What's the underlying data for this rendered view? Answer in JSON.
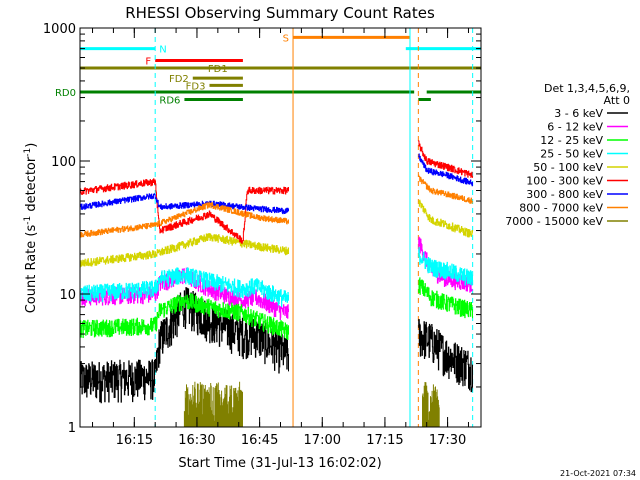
{
  "chart_data": {
    "type": "line",
    "title": "RHESSI Observing Summary Count Rates",
    "xlabel": "Start Time (31-Jul-13 16:02:02)",
    "ylabel": "Count Rate (s^-1 detector^-1)",
    "ylabel_parts": {
      "main": "Count Rate (s",
      "sup1": "-1",
      "mid": " detector",
      "sup2": "-1",
      "end": ")"
    },
    "y_scale": "log",
    "ylim": [
      1,
      1000
    ],
    "xlim": [
      "16:02",
      "17:38"
    ],
    "x_ticks": [
      "16:15",
      "16:30",
      "16:45",
      "17:00",
      "17:15",
      "17:30"
    ],
    "y_ticks": [
      "1",
      "10",
      "100",
      "1000"
    ],
    "footer_date": "21-Oct-2021 07:34",
    "legend": {
      "placement": "right",
      "header_lines": [
        "Det 1,3,4,5,6,9,",
        "Att 0"
      ],
      "entries": [
        {
          "label": "3 - 6 keV",
          "color": "#000000"
        },
        {
          "label": "6 - 12 keV",
          "color": "#ff00ff"
        },
        {
          "label": "12 - 25 keV",
          "color": "#00ff00"
        },
        {
          "label": "25 - 50 keV",
          "color": "#00ffff"
        },
        {
          "label": "50 - 100 keV",
          "color": "#d4d400"
        },
        {
          "label": "100 - 300 keV",
          "color": "#ff0000"
        },
        {
          "label": "300 - 800 keV",
          "color": "#0000ff"
        },
        {
          "label": "800 - 7000 keV",
          "color": "#ff8000"
        },
        {
          "label": "7000 - 15000 keV",
          "color": "#808000"
        }
      ]
    },
    "flags": [
      {
        "label": "N",
        "color": "#00ffff",
        "level": 700,
        "intervals": [
          [
            "16:02",
            "16:20"
          ],
          [
            "17:20",
            "17:38"
          ]
        ]
      },
      {
        "label": "F",
        "color": "#ff0000",
        "level": 570,
        "intervals": [
          [
            "16:20",
            "16:41"
          ]
        ]
      },
      {
        "label": "S",
        "color": "#ff8000",
        "level": 850,
        "intervals": [
          [
            "16:53",
            "17:21"
          ]
        ]
      },
      {
        "label": "FD1",
        "color": "#808000",
        "level": 500,
        "intervals": [
          [
            "16:02",
            "17:38"
          ]
        ]
      },
      {
        "label": "FD2",
        "color": "#808000",
        "level": 420,
        "intervals": [
          [
            "16:29",
            "16:41"
          ]
        ]
      },
      {
        "label": "FD3",
        "color": "#808000",
        "level": 370,
        "intervals": [
          [
            "16:33",
            "16:41"
          ]
        ]
      },
      {
        "label": "RD0",
        "color": "#008000",
        "level": 330,
        "intervals": [
          [
            "16:02",
            "17:22"
          ],
          [
            "17:25",
            "17:38"
          ]
        ]
      },
      {
        "label": "RD6",
        "color": "#008000",
        "level": 290,
        "intervals": [
          [
            "16:27",
            "16:41"
          ],
          [
            "17:23",
            "17:26"
          ]
        ]
      }
    ],
    "vlines": [
      {
        "time": "16:20",
        "color": "#00ffff",
        "dashed": true
      },
      {
        "time": "16:53",
        "color": "#ff8000",
        "dashed": false
      },
      {
        "time": "17:21",
        "color": "#00ffff",
        "dashed": false
      },
      {
        "time": "17:23",
        "color": "#ff8000",
        "dashed": true
      },
      {
        "time": "17:36",
        "color": "#00ffff",
        "dashed": true
      }
    ],
    "series": [
      {
        "name": "3 - 6 keV",
        "color": "#000000",
        "noise": 0.35,
        "points": [
          [
            "16:02",
            2.3
          ],
          [
            "16:20",
            2.4
          ],
          [
            "16:21",
            4.5
          ],
          [
            "16:27",
            8.5
          ],
          [
            "16:33",
            6.5
          ],
          [
            "16:38",
            5.5
          ],
          [
            "16:41",
            5.0
          ],
          [
            "16:44",
            5.0
          ],
          [
            "16:50",
            3.8
          ],
          [
            "16:52",
            3.5
          ],
          [
            "17:23",
            5.0
          ],
          [
            "17:26",
            4.5
          ],
          [
            "17:30",
            3.5
          ],
          [
            "17:36",
            2.8
          ]
        ]
      },
      {
        "name": "6 - 12 keV",
        "color": "#ff00ff",
        "noise": 0.15,
        "points": [
          [
            "16:02",
            9.5
          ],
          [
            "16:20",
            10.0
          ],
          [
            "16:21",
            12.0
          ],
          [
            "16:27",
            14.0
          ],
          [
            "16:33",
            11.0
          ],
          [
            "16:38",
            9.5
          ],
          [
            "16:41",
            9.0
          ],
          [
            "16:44",
            9.5
          ],
          [
            "16:50",
            7.5
          ],
          [
            "16:52",
            7.2
          ],
          [
            "17:23",
            25.0
          ],
          [
            "17:26",
            15.0
          ],
          [
            "17:30",
            13.0
          ],
          [
            "17:36",
            12.0
          ]
        ]
      },
      {
        "name": "12 - 25 keV",
        "color": "#00ff00",
        "noise": 0.15,
        "points": [
          [
            "16:02",
            5.5
          ],
          [
            "16:20",
            5.8
          ],
          [
            "16:21",
            7.5
          ],
          [
            "16:27",
            9.0
          ],
          [
            "16:33",
            8.0
          ],
          [
            "16:38",
            7.5
          ],
          [
            "16:41",
            7.2
          ],
          [
            "16:44",
            6.5
          ],
          [
            "16:50",
            5.5
          ],
          [
            "16:52",
            5.2
          ],
          [
            "17:23",
            12.0
          ],
          [
            "17:26",
            9.5
          ],
          [
            "17:30",
            8.5
          ],
          [
            "17:36",
            7.5
          ]
        ]
      },
      {
        "name": "25 - 50 keV",
        "color": "#00ffff",
        "noise": 0.15,
        "points": [
          [
            "16:02",
            10.0
          ],
          [
            "16:20",
            11.0
          ],
          [
            "16:21",
            13.0
          ],
          [
            "16:27",
            14.0
          ],
          [
            "16:33",
            12.5
          ],
          [
            "16:38",
            11.5
          ],
          [
            "16:41",
            11.0
          ],
          [
            "16:44",
            11.5
          ],
          [
            "16:50",
            9.5
          ],
          [
            "16:52",
            9.0
          ],
          [
            "17:23",
            20.0
          ],
          [
            "17:26",
            16.0
          ],
          [
            "17:30",
            15.0
          ],
          [
            "17:36",
            13.0
          ]
        ]
      },
      {
        "name": "50 - 100 keV",
        "color": "#d4d400",
        "noise": 0.07,
        "points": [
          [
            "16:02",
            17.0
          ],
          [
            "16:20",
            20.0
          ],
          [
            "16:33",
            27.0
          ],
          [
            "16:44",
            23.0
          ],
          [
            "16:52",
            21.0
          ],
          [
            "17:23",
            50.0
          ],
          [
            "17:26",
            36.0
          ],
          [
            "17:30",
            33.0
          ],
          [
            "17:36",
            28.0
          ]
        ]
      },
      {
        "name": "100 - 300 keV",
        "color": "#ff0000",
        "noise": 0.06,
        "points": [
          [
            "16:02",
            59.0
          ],
          [
            "16:20",
            70.0
          ],
          [
            "16:21",
            30.0
          ],
          [
            "16:33",
            40.0
          ],
          [
            "16:41",
            25.0
          ],
          [
            "16:42",
            60.0
          ],
          [
            "16:52",
            60.0
          ],
          [
            "17:23",
            135.0
          ],
          [
            "17:25",
            100.0
          ],
          [
            "17:30",
            90.0
          ],
          [
            "17:36",
            78.0
          ]
        ]
      },
      {
        "name": "300 - 800 keV",
        "color": "#0000ff",
        "noise": 0.05,
        "points": [
          [
            "16:02",
            45.0
          ],
          [
            "16:20",
            55.0
          ],
          [
            "16:21",
            45.0
          ],
          [
            "16:33",
            48.0
          ],
          [
            "16:44",
            44.0
          ],
          [
            "16:52",
            42.0
          ],
          [
            "17:23",
            110.0
          ],
          [
            "17:25",
            85.0
          ],
          [
            "17:30",
            78.0
          ],
          [
            "17:36",
            68.0
          ]
        ]
      },
      {
        "name": "800 - 7000 keV",
        "color": "#ff8000",
        "noise": 0.05,
        "points": [
          [
            "16:02",
            28.0
          ],
          [
            "16:20",
            33.0
          ],
          [
            "16:33",
            47.0
          ],
          [
            "16:44",
            38.0
          ],
          [
            "16:52",
            35.0
          ],
          [
            "17:23",
            75.0
          ],
          [
            "17:26",
            60.0
          ],
          [
            "17:30",
            56.0
          ],
          [
            "17:36",
            50.0
          ]
        ]
      },
      {
        "name": "7000 - 15000 keV",
        "color": "#808000",
        "noise": 0,
        "points": [
          [
            "16:27",
            1.0
          ],
          [
            "16:41",
            1.0
          ],
          [
            "17:24",
            1.0
          ],
          [
            "17:28",
            1.0
          ]
        ]
      }
    ]
  }
}
